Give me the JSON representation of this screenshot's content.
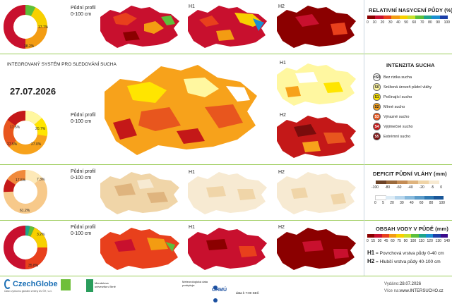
{
  "section_titles": {
    "saturation": "RELATIVNÍ NASYCENÍ PŮDY (%)",
    "intensity": "INTENZITA SUCHA",
    "deficit": "DEFICIT PŮDNÍ VLÁHY (mm)",
    "water": "OBSAH VODY V PŮDĚ (mm)"
  },
  "system_title": "INTEGROVANÝ SYSTÉM PRO SLEDOVÁNÍ SUCHA",
  "date": "27.07.2026",
  "profile_label_1": "Půdní profil",
  "profile_label_2": "0-100 cm",
  "map_labels": {
    "h1": "H1",
    "h2": "H2"
  },
  "saturation_scale": {
    "ticks": [
      "0",
      "10",
      "20",
      "30",
      "40",
      "50",
      "60",
      "70",
      "80",
      "90",
      "100"
    ],
    "colors": [
      "#8b0000",
      "#c8102e",
      "#e8401c",
      "#f39c12",
      "#f7d000",
      "#c6e02a",
      "#5cbf3a",
      "#1ea58c",
      "#1a8fd1",
      "#1c3fa8",
      "#3a0c8c"
    ]
  },
  "deficit_scale": {
    "ticks": [
      "-100",
      "-80",
      "-60",
      "-40",
      "-20",
      "-5",
      "0"
    ],
    "colors": [
      "#6b4226",
      "#9b6a3c",
      "#c48c55",
      "#dfb47e",
      "#f0d5a8",
      "#f7ead2",
      "#ffffff"
    ]
  },
  "water_scale": {
    "ticks": [
      "0",
      "5",
      "20",
      "30",
      "40",
      "60",
      "80",
      "100"
    ],
    "colors": [
      "#ffffff",
      "#dcebf5",
      "#b5d5ec",
      "#86b9dc",
      "#5a9bc9",
      "#2e78b1",
      "#1a5799",
      "#0d3a73"
    ]
  },
  "content_scale": {
    "ticks": [
      "0",
      "15",
      "30",
      "45",
      "60",
      "75",
      "90",
      "100",
      "110",
      "120",
      "130",
      "140"
    ],
    "colors": [
      "#8b0000",
      "#c8102e",
      "#e8401c",
      "#f39c12",
      "#f7d000",
      "#c6e02a",
      "#5cbf3a",
      "#1ea58c",
      "#1a8fd1",
      "#1c3fa8",
      "#3a0c8c"
    ]
  },
  "intensity_legend": [
    {
      "code": "<S0",
      "label": "Bez rizika sucha",
      "color": "#ffffff",
      "text": "#222"
    },
    {
      "code": "S0",
      "label": "Snížená úroveň půdní vláhy",
      "color": "#fff7a0",
      "text": "#222"
    },
    {
      "code": "S1",
      "label": "Počínající sucho",
      "color": "#ffe500",
      "text": "#222"
    },
    {
      "code": "S2",
      "label": "Mírné sucho",
      "color": "#f7a21b",
      "text": "#222"
    },
    {
      "code": "S3",
      "label": "Výrazné sucho",
      "color": "#e8561e",
      "text": "#fff"
    },
    {
      "code": "S4",
      "label": "Výjimečné sucho",
      "color": "#c41818",
      "text": "#fff"
    },
    {
      "code": "S5",
      "label": "Extrémní sucho",
      "color": "#7a0c0c",
      "text": "#fff"
    }
  ],
  "donuts": {
    "saturation": {
      "labels": [
        "17.7%",
        "38.2%"
      ],
      "segments": [
        0.38,
        0.18,
        0.05,
        0.04,
        0.35
      ]
    },
    "intensity": {
      "labels": [
        "20.7%",
        "27.0%",
        "27.5%",
        "17.5%"
      ],
      "segments": [
        0.07,
        0.21,
        0.27,
        0.28,
        0.17
      ]
    },
    "deficit": {
      "labels": [
        "17.5%",
        "7.3%",
        "61.2%"
      ],
      "segments": [
        0.61,
        0.07,
        0.17,
        0.15
      ]
    },
    "water": {
      "labels": [
        "3.2%",
        "35.8%"
      ],
      "segments": [
        0.36,
        0.35,
        0.03,
        0.02,
        0.24
      ]
    }
  },
  "h_legend": {
    "h1_code": "H1",
    "h1_text": "= Povrchová vrstva půdy 0-40 cm",
    "h2_code": "H2",
    "h2_text": "= Hlubší vrstva půdy 40-100 cm"
  },
  "footer": {
    "czechglobe": "CzechGlobe",
    "czechglobe_sub": "Ústav výzkumu globální změny AV ČR, v.v.i.",
    "mendel": "Mendelova univerzita v Brně",
    "chmu_note": "Meteorologická data poskytuje:",
    "chmu": "ČHMÚ",
    "chmu_time": "data k 7:00 SEČ",
    "issued_label": "Vydáno:",
    "issued_date": "28.07.2026",
    "more_label": "Více na:",
    "more_url": "www.INTERSUCHO.cz"
  }
}
